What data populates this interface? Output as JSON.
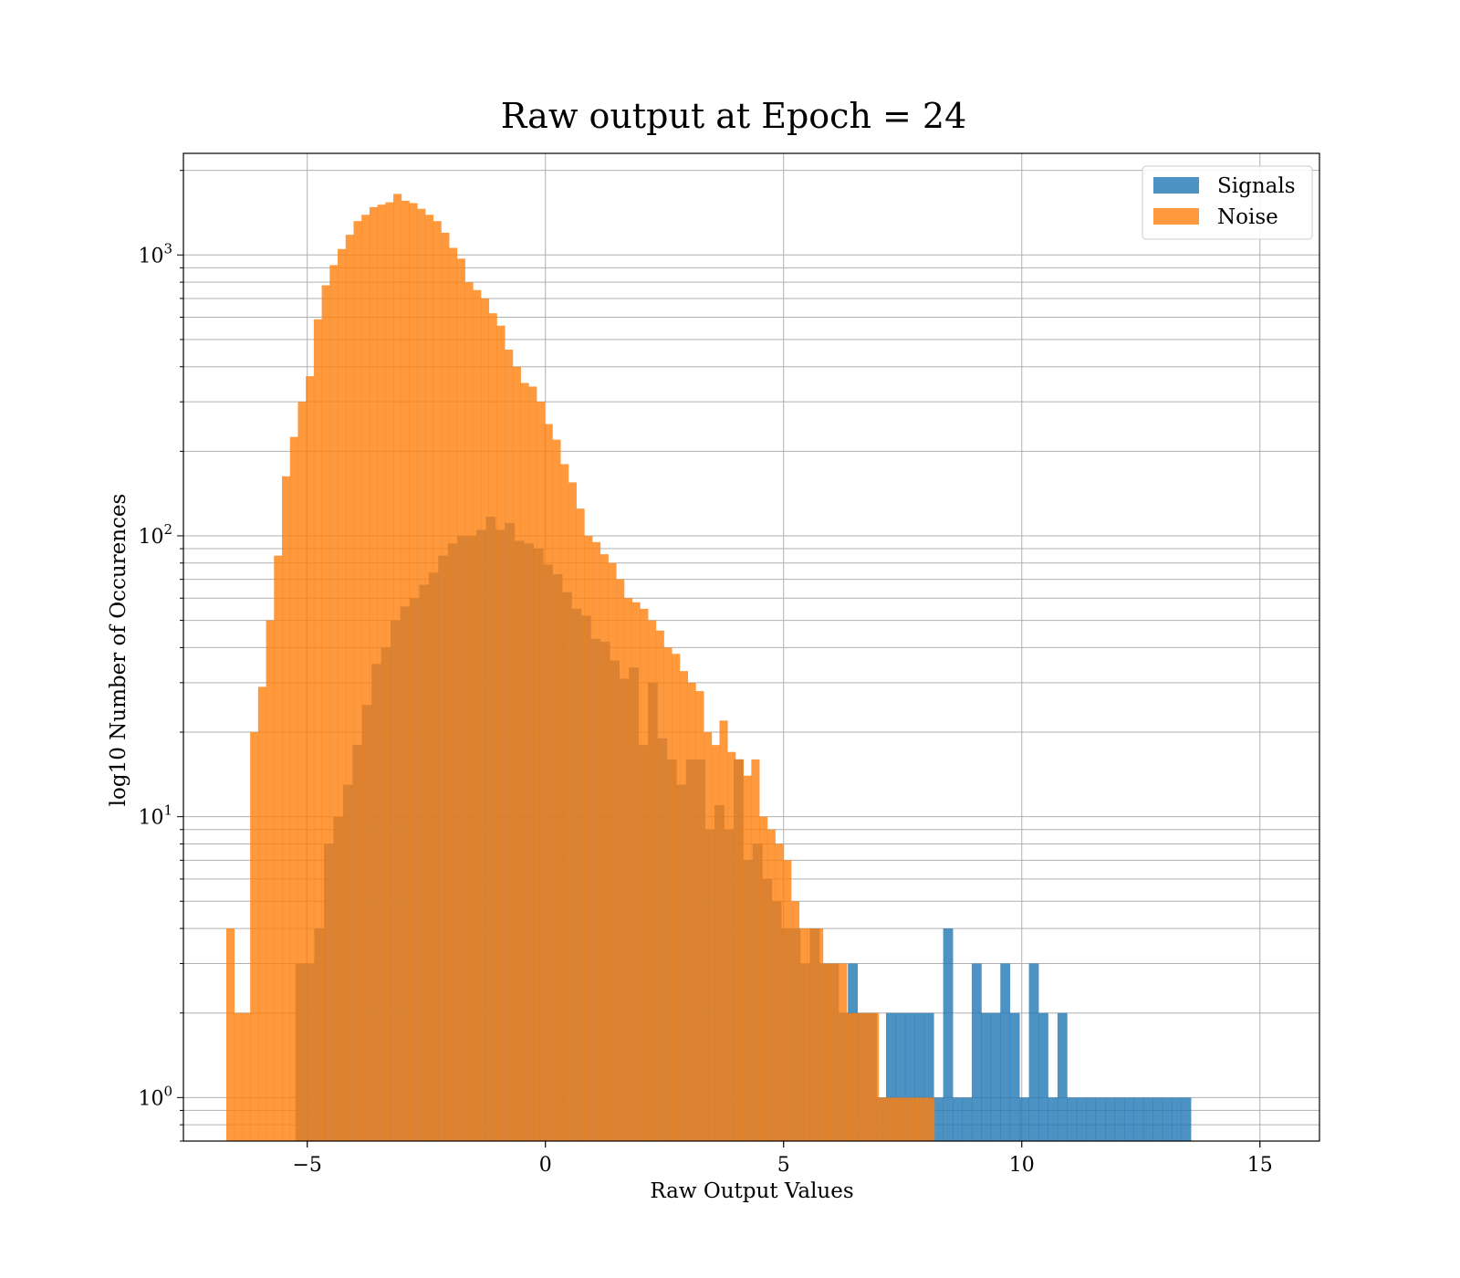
{
  "chart_data": {
    "type": "histogram",
    "title": "Raw output at Epoch = 24",
    "xlabel": "Raw Output Values",
    "ylabel": "log10 Number of Occurences",
    "xlim": [
      -7.6,
      16.25
    ],
    "ylim": [
      0.7,
      2300
    ],
    "yscale": "log",
    "grid": true,
    "legend_position": "top-right",
    "x_ticks": [
      {
        "value": -5,
        "label": "−5"
      },
      {
        "value": 0,
        "label": "0"
      },
      {
        "value": 5,
        "label": "5"
      },
      {
        "value": 10,
        "label": "10"
      },
      {
        "value": 15,
        "label": "15"
      }
    ],
    "y_ticks": [
      {
        "value": 1,
        "base": "10",
        "exp": "0"
      },
      {
        "value": 10,
        "base": "10",
        "exp": "1"
      },
      {
        "value": 100,
        "base": "10",
        "exp": "2"
      },
      {
        "value": 1000,
        "base": "10",
        "exp": "3"
      }
    ],
    "series": [
      {
        "name": "Signals",
        "color": "#1f77b4",
        "opacity": 0.8,
        "bin_start": -5.25,
        "bin_width": 0.2,
        "counts": [
          3,
          3,
          4,
          8,
          10,
          13,
          18,
          25,
          35,
          40,
          50,
          56,
          60,
          67,
          74,
          85,
          94,
          100,
          100,
          105,
          117,
          105,
          111,
          96,
          94,
          90,
          79,
          73,
          63,
          55,
          52,
          43,
          42,
          36,
          31,
          34,
          18,
          30,
          19,
          16,
          13,
          16,
          16,
          9,
          11,
          9,
          16,
          7,
          8,
          6,
          5,
          4,
          4,
          3,
          4,
          3,
          3,
          2,
          3,
          2,
          2,
          1,
          2,
          2,
          2,
          2,
          2,
          1,
          4,
          1,
          1,
          3,
          2,
          2,
          3,
          2,
          1,
          3,
          2,
          1,
          2,
          1,
          1,
          1,
          1,
          1,
          1,
          1,
          1,
          1,
          1,
          1,
          1,
          1
        ]
      },
      {
        "name": "Noise",
        "color": "#ff7f0e",
        "opacity": 0.8,
        "bin_start": -6.7,
        "bin_width": 0.167,
        "counts": [
          4,
          2,
          2,
          20,
          29,
          50,
          85,
          163,
          225,
          300,
          370,
          590,
          780,
          920,
          1050,
          1180,
          1320,
          1390,
          1480,
          1510,
          1540,
          1650,
          1560,
          1530,
          1460,
          1390,
          1320,
          1200,
          1060,
          970,
          800,
          750,
          700,
          620,
          560,
          460,
          400,
          350,
          340,
          300,
          250,
          220,
          180,
          155,
          125,
          100,
          95,
          86,
          80,
          70,
          60,
          58,
          55,
          50,
          46,
          40,
          38,
          33,
          30,
          28,
          20,
          18,
          22,
          17,
          16,
          14,
          16,
          10,
          9,
          8,
          7,
          5,
          4,
          4,
          4,
          3,
          3,
          3,
          2,
          2,
          2,
          2,
          1,
          1,
          1,
          1,
          1,
          1,
          1
        ]
      }
    ]
  }
}
